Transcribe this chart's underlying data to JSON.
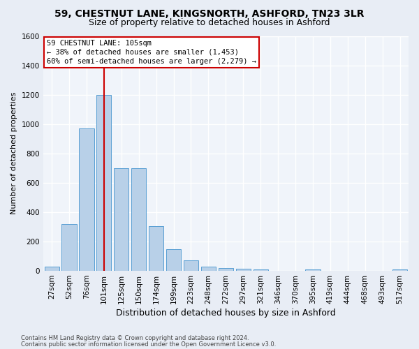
{
  "title_line1": "59, CHESTNUT LANE, KINGSNORTH, ASHFORD, TN23 3LR",
  "title_line2": "Size of property relative to detached houses in Ashford",
  "xlabel": "Distribution of detached houses by size in Ashford",
  "ylabel": "Number of detached properties",
  "bar_labels": [
    "27sqm",
    "52sqm",
    "76sqm",
    "101sqm",
    "125sqm",
    "150sqm",
    "174sqm",
    "199sqm",
    "223sqm",
    "248sqm",
    "272sqm",
    "297sqm",
    "321sqm",
    "346sqm",
    "370sqm",
    "395sqm",
    "419sqm",
    "444sqm",
    "468sqm",
    "493sqm",
    "517sqm"
  ],
  "bar_values": [
    30,
    320,
    970,
    1200,
    700,
    700,
    305,
    150,
    70,
    30,
    20,
    15,
    10,
    0,
    0,
    10,
    0,
    0,
    0,
    0,
    10
  ],
  "bar_color": "#b8d0e8",
  "bar_edge_color": "#5a9fd4",
  "ylim": [
    0,
    1600
  ],
  "yticks": [
    0,
    200,
    400,
    600,
    800,
    1000,
    1200,
    1400,
    1600
  ],
  "vline_color": "#cc0000",
  "vline_x": 3.0,
  "annotation_text_line1": "59 CHESTNUT LANE: 105sqm",
  "annotation_text_line2": "← 38% of detached houses are smaller (1,453)",
  "annotation_text_line3": "60% of semi-detached houses are larger (2,279) →",
  "annotation_box_color": "#cc0000",
  "footnote1": "Contains HM Land Registry data © Crown copyright and database right 2024.",
  "footnote2": "Contains public sector information licensed under the Open Government Licence v3.0.",
  "bg_color": "#e8edf5",
  "plot_bg_color": "#f0f4fa",
  "grid_color": "#ffffff",
  "title_fontsize": 10,
  "subtitle_fontsize": 9,
  "ylabel_fontsize": 8,
  "xlabel_fontsize": 9,
  "tick_fontsize": 7.5,
  "annotation_fontsize": 7.5,
  "footnote_fontsize": 6
}
